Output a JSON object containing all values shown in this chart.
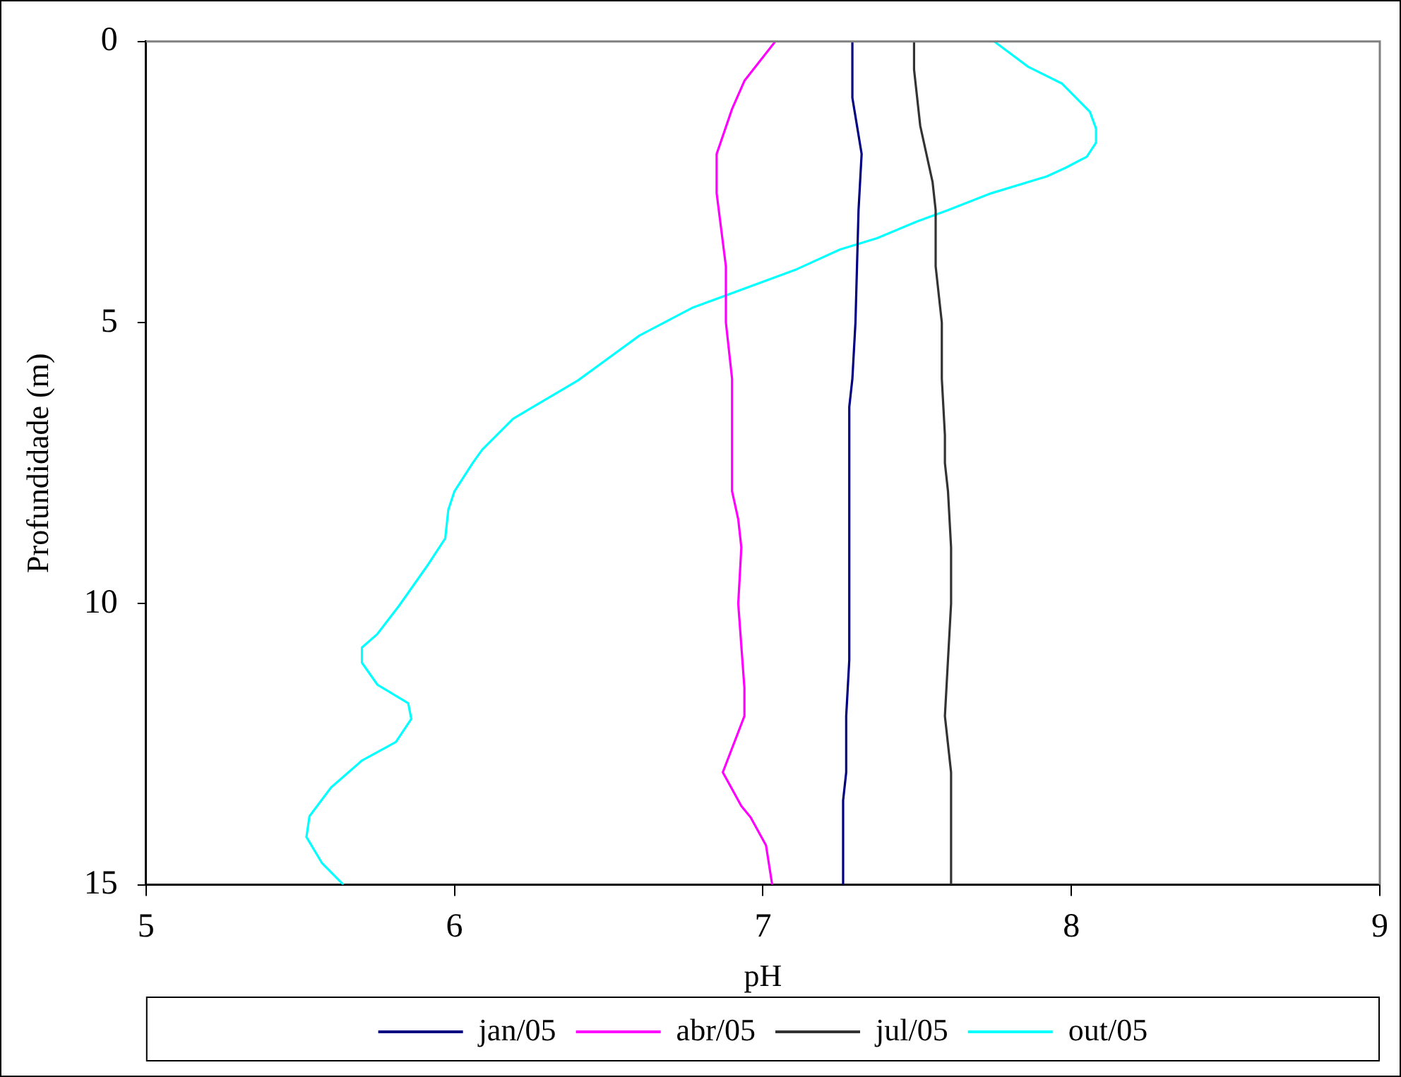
{
  "chart_data": {
    "type": "line",
    "xlabel": "pH",
    "ylabel": "Profundidade (m)",
    "xlim": [
      5,
      9
    ],
    "xticks": [
      5,
      6,
      7,
      8,
      9
    ],
    "ylim": [
      15,
      0
    ],
    "yticks": [
      0,
      5,
      10,
      15
    ],
    "grid": false,
    "legend": "bottom",
    "marker": "none",
    "line_style": "solid",
    "series": [
      {
        "name": "jan/05",
        "color": "#000080",
        "x": [
          7.29,
          7.29,
          7.32,
          7.31,
          7.3,
          7.29,
          7.28,
          7.28,
          7.27,
          7.27,
          7.26,
          7.26
        ],
        "values": [
          0,
          1,
          2,
          3,
          5,
          6,
          6.5,
          11,
          12,
          13,
          13.5,
          15
        ]
      },
      {
        "name": "abr/05",
        "color": "#ff00ff",
        "x": [
          7.04,
          6.94,
          6.9,
          6.85,
          6.85,
          6.88,
          6.88,
          6.9,
          6.9,
          6.92,
          6.93,
          6.92,
          6.94,
          6.94,
          6.87,
          6.93,
          6.96,
          7.01,
          7.03
        ],
        "values": [
          0,
          0.7,
          1.2,
          2,
          2.7,
          4,
          5,
          6,
          8,
          8.5,
          9,
          10,
          11.5,
          12,
          13,
          13.6,
          13.8,
          14.3,
          15
        ]
      },
      {
        "name": "jul/05",
        "color": "#333333",
        "x": [
          7.49,
          7.49,
          7.51,
          7.55,
          7.56,
          7.56,
          7.58,
          7.58,
          7.59,
          7.59,
          7.6,
          7.61,
          7.61,
          7.6,
          7.59,
          7.61,
          7.61
        ],
        "values": [
          0,
          0.5,
          1.5,
          2.5,
          3,
          4,
          5,
          6,
          7,
          7.5,
          8,
          9,
          10,
          11,
          12,
          13,
          15
        ]
      },
      {
        "name": "out/05",
        "color": "#00ffff",
        "x": [
          7.75,
          7.86,
          7.97,
          8.06,
          8.08,
          8.08,
          8.05,
          7.98,
          7.92,
          7.74,
          7.6,
          7.5,
          7.37,
          7.25,
          7.11,
          6.77,
          6.6,
          6.4,
          6.19,
          6.09,
          6.06,
          6.0,
          5.98,
          5.97,
          5.91,
          5.82,
          5.75,
          5.7,
          5.7,
          5.75,
          5.85,
          5.86,
          5.81,
          5.7,
          5.6,
          5.53,
          5.52,
          5.57,
          5.64
        ],
        "values": [
          0,
          0.45,
          0.75,
          1.25,
          1.55,
          1.8,
          2.05,
          2.25,
          2.4,
          2.7,
          3,
          3.2,
          3.5,
          3.7,
          4.05,
          4.74,
          5.23,
          6.03,
          6.71,
          7.26,
          7.49,
          8,
          8.33,
          8.84,
          9.34,
          10.04,
          10.54,
          10.78,
          11.05,
          11.44,
          11.77,
          12.05,
          12.46,
          12.79,
          13.27,
          13.78,
          14.15,
          14.61,
          15
        ]
      }
    ]
  }
}
